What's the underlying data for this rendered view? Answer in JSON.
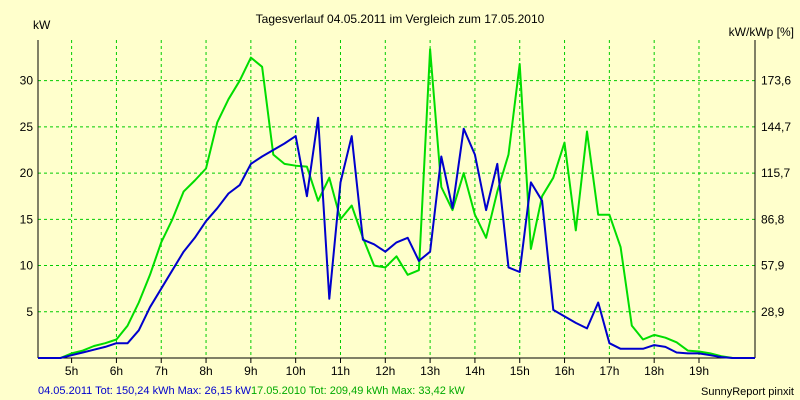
{
  "colors": {
    "background": "#ffffcc",
    "grid": "#00cc00",
    "series_a": "#0000cc",
    "series_b": "#00dd00",
    "axis": "#000000"
  },
  "chart_data": {
    "type": "line",
    "title": "Tagesverlauf 04.05.2011 im Vergleich zum 17.05.2010",
    "ylabel": "kW",
    "y2label": "kW/kWp [%]",
    "xlim": [
      4.25,
      20.25
    ],
    "ylim": [
      0,
      34.4
    ],
    "grid": true,
    "x_ticks": [
      5,
      6,
      7,
      8,
      9,
      10,
      11,
      12,
      13,
      14,
      15,
      16,
      17,
      18,
      19
    ],
    "x_tick_labels": [
      "5h",
      "6h",
      "7h",
      "8h",
      "9h",
      "10h",
      "11h",
      "12h",
      "13h",
      "14h",
      "15h",
      "16h",
      "17h",
      "18h",
      "19h"
    ],
    "y_ticks": [
      5,
      10,
      15,
      20,
      25,
      30
    ],
    "y_tick_labels": [
      "5",
      "10",
      "15",
      "20",
      "25",
      "30"
    ],
    "y2_ticks": [
      5,
      10,
      15,
      20,
      25,
      30
    ],
    "y2_tick_labels": [
      "28,9",
      "57,9",
      "86,8",
      "115,7",
      "144,7",
      "173,6"
    ],
    "series": [
      {
        "name": "04.05.2011",
        "color": "#0000cc",
        "x": [
          4.25,
          4.75,
          5.0,
          5.25,
          5.5,
          5.75,
          6.0,
          6.25,
          6.5,
          6.75,
          7.0,
          7.25,
          7.5,
          7.75,
          8.0,
          8.25,
          8.5,
          8.75,
          9.0,
          9.25,
          9.5,
          9.75,
          10.0,
          10.25,
          10.5,
          10.75,
          11.0,
          11.25,
          11.5,
          11.75,
          12.0,
          12.25,
          12.5,
          12.75,
          13.0,
          13.25,
          13.5,
          13.75,
          14.0,
          14.25,
          14.5,
          14.75,
          15.0,
          15.25,
          15.5,
          15.75,
          16.0,
          16.25,
          16.5,
          16.75,
          17.0,
          17.25,
          17.5,
          17.75,
          18.0,
          18.25,
          18.5,
          18.75,
          19.0,
          19.25,
          19.5,
          19.75,
          20.25
        ],
        "y": [
          0,
          0,
          0.3,
          0.6,
          0.9,
          1.2,
          1.6,
          1.6,
          3.0,
          5.5,
          7.5,
          9.5,
          11.5,
          13.0,
          14.8,
          16.2,
          17.8,
          18.7,
          21.0,
          21.8,
          22.5,
          23.2,
          24.0,
          17.5,
          26.0,
          6.4,
          19.0,
          24.0,
          12.8,
          12.3,
          11.5,
          12.5,
          13.0,
          10.5,
          11.5,
          21.8,
          16.2,
          24.8,
          22.0,
          16.0,
          21.0,
          9.8,
          9.3,
          19.0,
          17.0,
          5.2,
          4.5,
          3.8,
          3.2,
          6.0,
          1.6,
          1.0,
          1.0,
          1.0,
          1.4,
          1.2,
          0.6,
          0.5,
          0.5,
          0.3,
          0.1,
          0,
          0
        ]
      },
      {
        "name": "17.05.2010",
        "color": "#00dd00",
        "x": [
          4.25,
          4.75,
          5.0,
          5.25,
          5.5,
          5.75,
          6.0,
          6.25,
          6.5,
          6.75,
          7.0,
          7.25,
          7.5,
          7.75,
          8.0,
          8.25,
          8.5,
          8.75,
          9.0,
          9.25,
          9.5,
          9.75,
          10.0,
          10.25,
          10.5,
          10.75,
          11.0,
          11.25,
          11.5,
          11.75,
          12.0,
          12.25,
          12.5,
          12.75,
          13.0,
          13.25,
          13.5,
          13.75,
          14.0,
          14.25,
          14.5,
          14.75,
          15.0,
          15.25,
          15.5,
          15.75,
          16.0,
          16.25,
          16.5,
          16.75,
          17.0,
          17.25,
          17.5,
          17.75,
          18.0,
          18.25,
          18.5,
          18.75,
          19.0,
          19.25,
          19.5,
          19.75,
          20.25
        ],
        "y": [
          0,
          0,
          0.5,
          0.8,
          1.3,
          1.6,
          2.0,
          3.5,
          6.0,
          9.0,
          12.5,
          15.0,
          18.0,
          19.2,
          20.5,
          25.5,
          28.0,
          30.0,
          32.5,
          31.5,
          22.0,
          21.0,
          20.8,
          20.7,
          17.0,
          19.5,
          15.0,
          16.5,
          13.0,
          10.0,
          9.8,
          11.0,
          9.0,
          9.5,
          33.4,
          18.5,
          16.0,
          20.0,
          15.5,
          13.0,
          18.0,
          22.0,
          31.8,
          11.8,
          17.5,
          19.5,
          23.3,
          13.8,
          24.5,
          15.5,
          15.5,
          12.0,
          3.5,
          2.0,
          2.5,
          2.2,
          1.7,
          0.8,
          0.7,
          0.5,
          0.2,
          0,
          0
        ]
      }
    ],
    "footer": {
      "a_prefix": "04.05.2011 Tot: 150,24 kWh Max: 26,15 kW",
      "b_prefix": "17.05.2010 Tot: 209,49 kWh Max: 33,42 kW",
      "credit": "SunnyReport pinxit"
    }
  }
}
